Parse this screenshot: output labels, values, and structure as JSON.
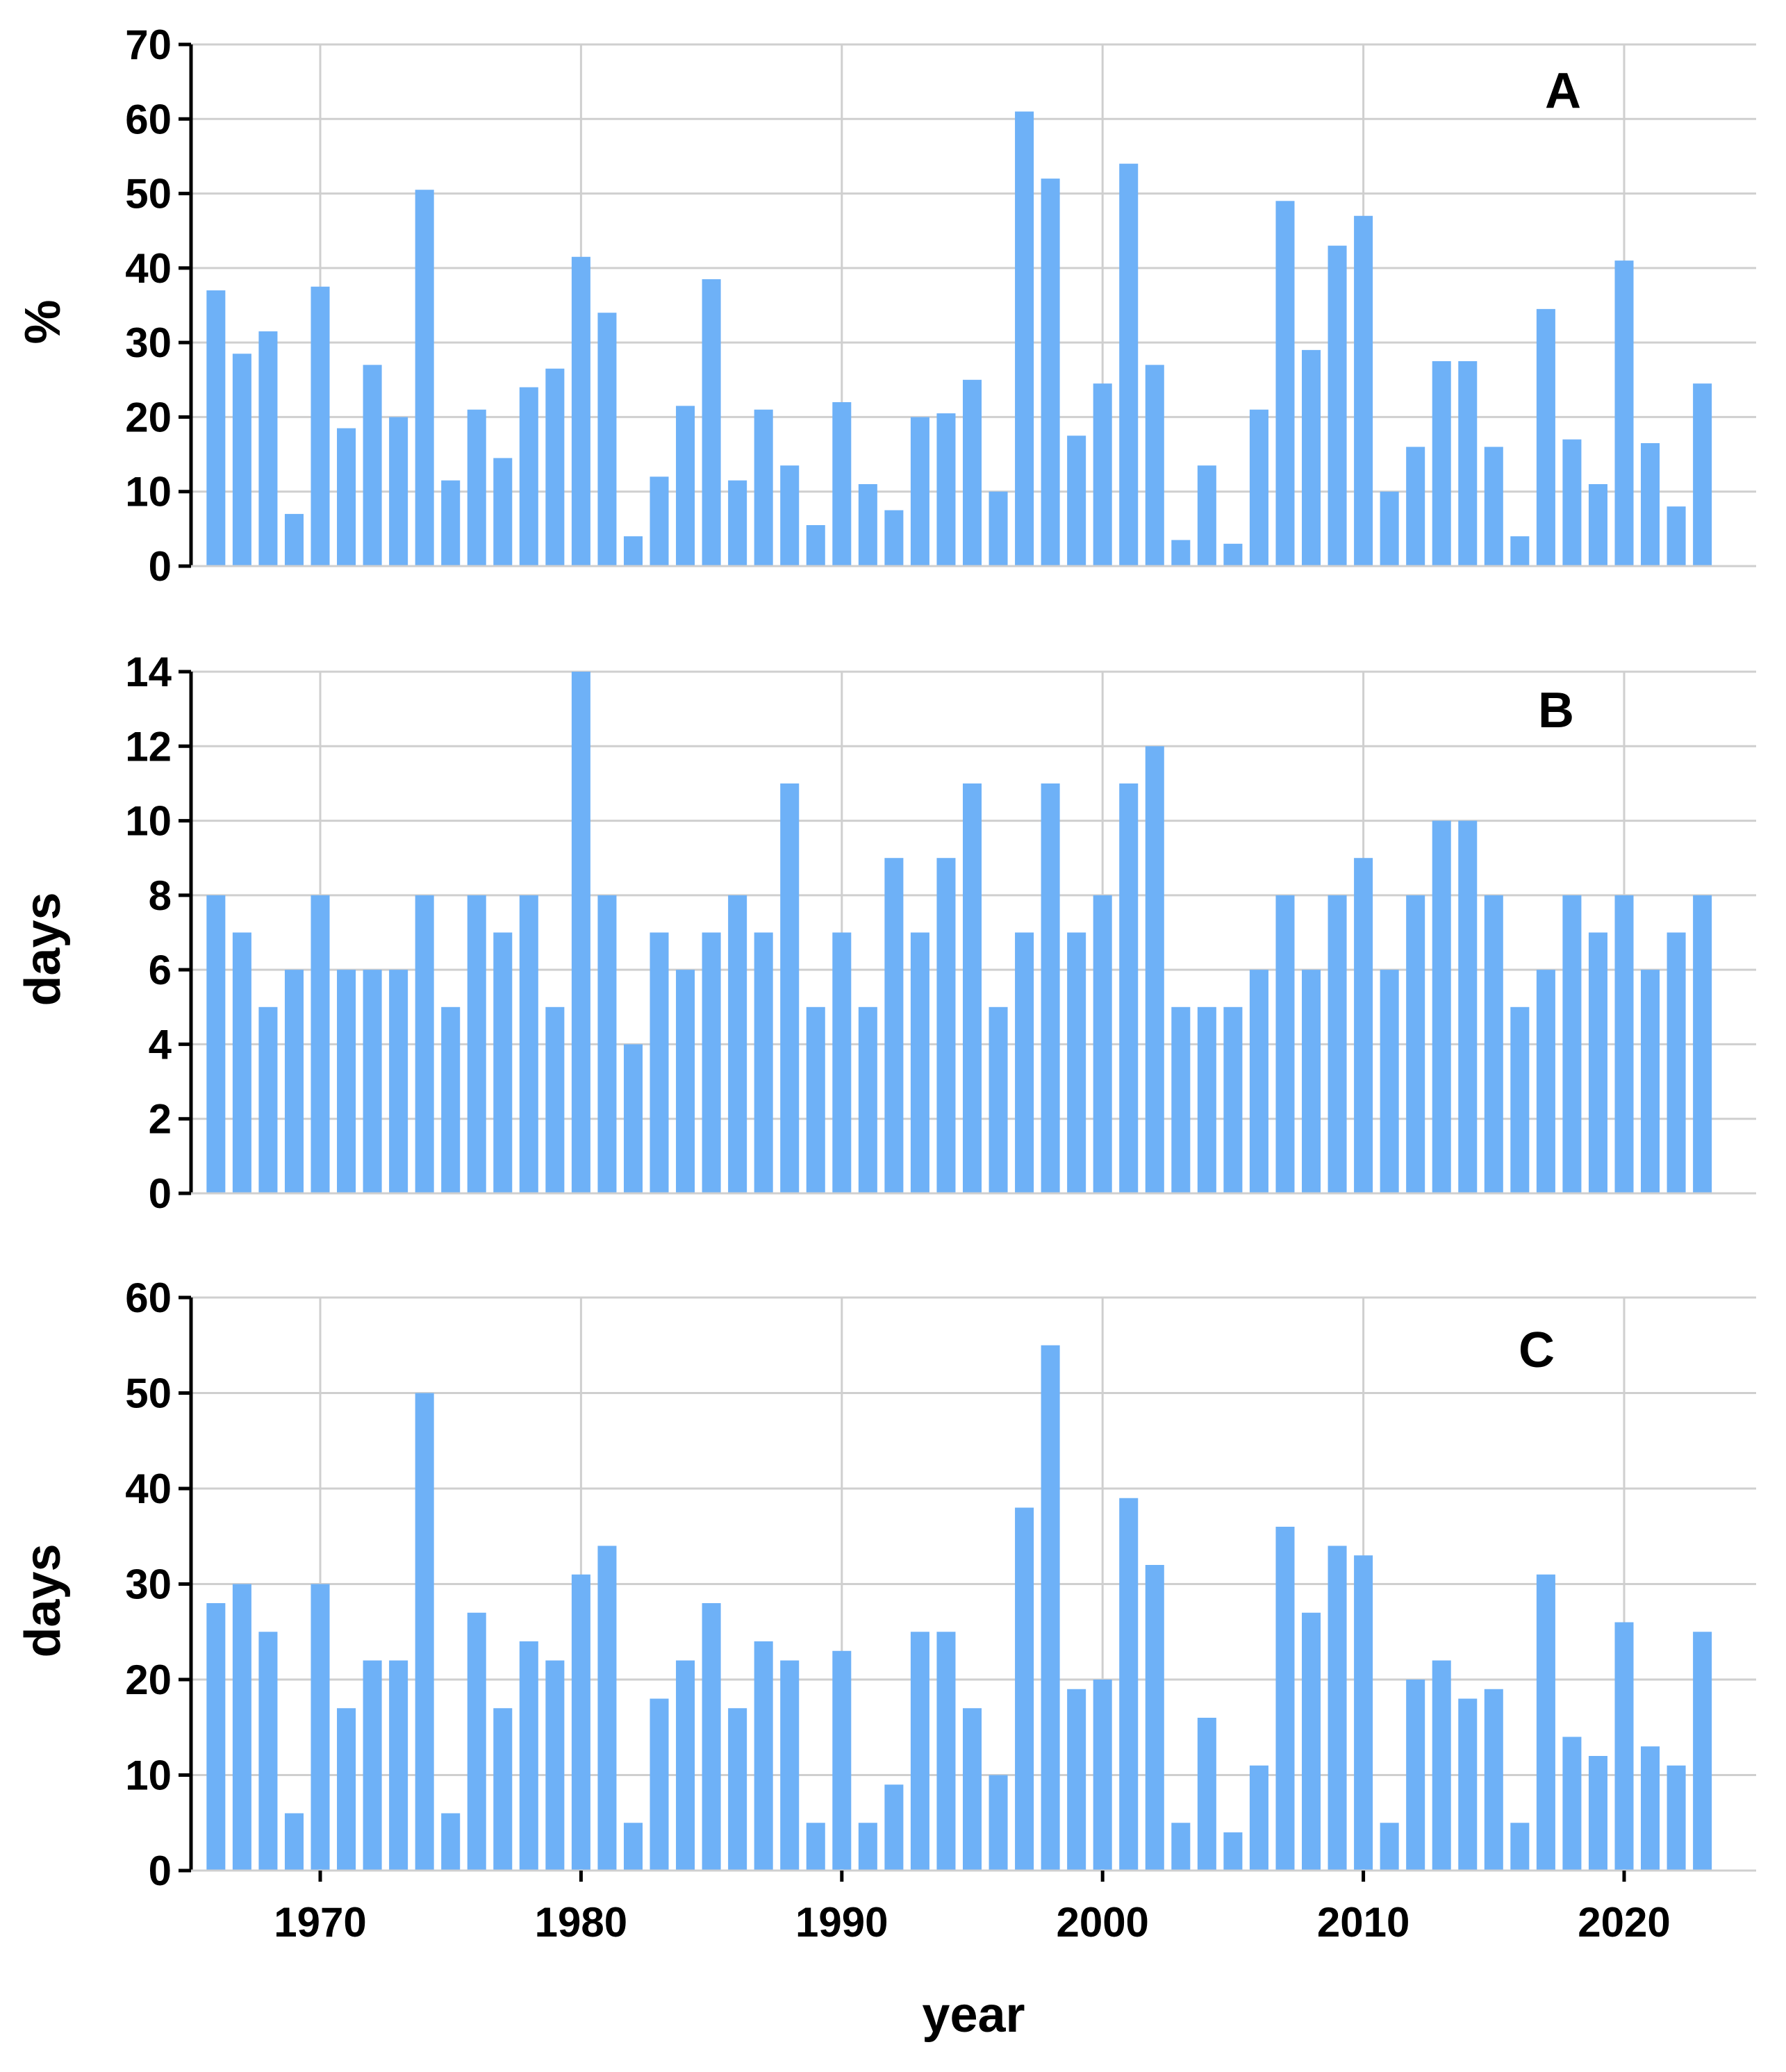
{
  "colors": {
    "bar": "#6eb1f7",
    "grid": "#cfcfcf",
    "axis": "#000000"
  },
  "chart_data": [
    {
      "type": "bar",
      "panel_label": "A",
      "ylabel": "%",
      "ylim": [
        0,
        70
      ],
      "yticks": [
        0,
        10,
        20,
        30,
        40,
        50,
        60,
        70
      ],
      "x": [
        1966,
        1967,
        1968,
        1969,
        1970,
        1971,
        1972,
        1973,
        1974,
        1975,
        1976,
        1977,
        1978,
        1979,
        1980,
        1981,
        1982,
        1983,
        1984,
        1985,
        1986,
        1987,
        1988,
        1989,
        1990,
        1991,
        1992,
        1993,
        1994,
        1995,
        1996,
        1997,
        1998,
        1999,
        2000,
        2001,
        2002,
        2003,
        2004,
        2005,
        2006,
        2007,
        2008,
        2009,
        2010,
        2011,
        2012,
        2013,
        2014,
        2015,
        2016,
        2017,
        2018,
        2019,
        2020,
        2021,
        2022,
        2023
      ],
      "values": [
        37,
        28.5,
        31.5,
        7,
        37.5,
        18.5,
        27,
        20,
        50.5,
        11.5,
        21,
        14.5,
        24,
        26.5,
        41.5,
        34,
        4,
        12,
        21.5,
        38.5,
        11.5,
        21,
        13.5,
        5.5,
        22,
        11,
        7.5,
        20,
        20.5,
        25,
        10,
        61,
        52,
        17.5,
        24.5,
        54,
        27,
        3.5,
        13.5,
        3,
        21,
        49,
        29,
        43,
        47,
        10,
        16,
        27.5,
        27.5,
        16,
        4,
        34.5,
        17,
        11,
        41,
        16.5,
        8,
        24.5
      ]
    },
    {
      "type": "bar",
      "panel_label": "B",
      "ylabel": "days",
      "ylim": [
        0,
        14
      ],
      "yticks": [
        0,
        2,
        4,
        6,
        8,
        10,
        12,
        14
      ],
      "x": [
        1966,
        1967,
        1968,
        1969,
        1970,
        1971,
        1972,
        1973,
        1974,
        1975,
        1976,
        1977,
        1978,
        1979,
        1980,
        1981,
        1982,
        1983,
        1984,
        1985,
        1986,
        1987,
        1988,
        1989,
        1990,
        1991,
        1992,
        1993,
        1994,
        1995,
        1996,
        1997,
        1998,
        1999,
        2000,
        2001,
        2002,
        2003,
        2004,
        2005,
        2006,
        2007,
        2008,
        2009,
        2010,
        2011,
        2012,
        2013,
        2014,
        2015,
        2016,
        2017,
        2018,
        2019,
        2020,
        2021,
        2022,
        2023
      ],
      "values": [
        8,
        7,
        5,
        6,
        8,
        6,
        6,
        6,
        8,
        5,
        8,
        7,
        8,
        5,
        14,
        8,
        4,
        7,
        6,
        7,
        8,
        7,
        11,
        5,
        7,
        5,
        9,
        7,
        9,
        11,
        5,
        7,
        11,
        7,
        8,
        11,
        12,
        5,
        5,
        5,
        6,
        8,
        6,
        8,
        9,
        6,
        8,
        10,
        10,
        8,
        5,
        6,
        8,
        7,
        8,
        6,
        7,
        8
      ]
    },
    {
      "type": "bar",
      "panel_label": "C",
      "ylabel": "days",
      "xlabel": "year",
      "ylim": [
        0,
        60
      ],
      "yticks": [
        0,
        10,
        20,
        30,
        40,
        50,
        60
      ],
      "xticks": [
        1970,
        1980,
        1990,
        2000,
        2010,
        2020
      ],
      "x": [
        1966,
        1967,
        1968,
        1969,
        1970,
        1971,
        1972,
        1973,
        1974,
        1975,
        1976,
        1977,
        1978,
        1979,
        1980,
        1981,
        1982,
        1983,
        1984,
        1985,
        1986,
        1987,
        1988,
        1989,
        1990,
        1991,
        1992,
        1993,
        1994,
        1995,
        1996,
        1997,
        1998,
        1999,
        2000,
        2001,
        2002,
        2003,
        2004,
        2005,
        2006,
        2007,
        2008,
        2009,
        2010,
        2011,
        2012,
        2013,
        2014,
        2015,
        2016,
        2017,
        2018,
        2019,
        2020,
        2021,
        2022,
        2023
      ],
      "values": [
        28,
        30,
        25,
        6,
        30,
        17,
        22,
        22,
        50,
        6,
        27,
        17,
        24,
        22,
        31,
        34,
        5,
        18,
        22,
        28,
        17,
        24,
        22,
        5,
        23,
        5,
        9,
        25,
        25,
        17,
        10,
        38,
        55,
        19,
        20,
        39,
        32,
        5,
        16,
        4,
        11,
        36,
        27,
        34,
        33,
        5,
        20,
        22,
        18,
        19,
        5,
        31,
        14,
        12,
        26,
        13,
        11,
        25
      ]
    }
  ]
}
